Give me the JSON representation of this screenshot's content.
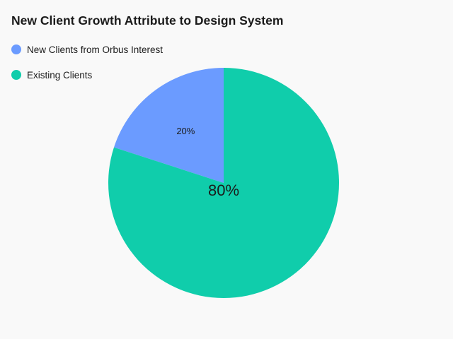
{
  "chart_data": {
    "type": "pie",
    "title": "New Client Growth Attribute to Design System",
    "slices": [
      {
        "label": "New Clients from Orbus Interest",
        "value": 20,
        "display": "20%",
        "color": "#6b9bff"
      },
      {
        "label": "Existing Clients",
        "value": 80,
        "display": "80%",
        "color": "#10cdab"
      }
    ],
    "legend_position": "top-left"
  }
}
